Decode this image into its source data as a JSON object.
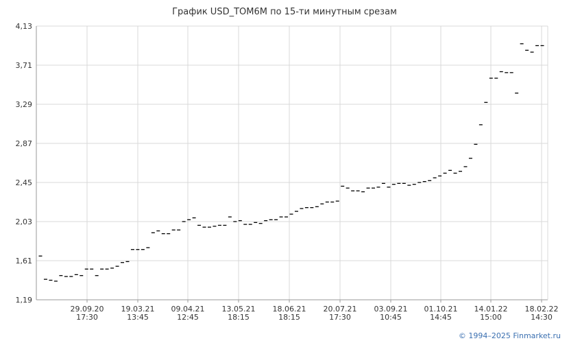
{
  "chart_data": {
    "type": "scatter",
    "title": "График USD_TOM6M по 15-ти минутным срезам",
    "y_ticks": [
      "4,13",
      "3,71",
      "3,29",
      "2,87",
      "2,45",
      "2,03",
      "1,61",
      "1,19"
    ],
    "ylim": [
      1.19,
      4.13
    ],
    "x_ticks": [
      {
        "date": "29.09.20",
        "time": "17:30"
      },
      {
        "date": "19.03.21",
        "time": "13:45"
      },
      {
        "date": "09.04.21",
        "time": "12:45"
      },
      {
        "date": "13.05.21",
        "time": "18:15"
      },
      {
        "date": "18.06.21",
        "time": "18:15"
      },
      {
        "date": "20.07.21",
        "time": "17:30"
      },
      {
        "date": "03.09.21",
        "time": "10:45"
      },
      {
        "date": "01.10.21",
        "time": "14:45"
      },
      {
        "date": "14.01.22",
        "time": "15:00"
      },
      {
        "date": "18.02.22",
        "time": "14:30"
      }
    ],
    "grid": true,
    "values": [
      1.66,
      1.41,
      1.4,
      1.39,
      1.45,
      1.44,
      1.44,
      1.46,
      1.45,
      1.52,
      1.52,
      1.45,
      1.52,
      1.52,
      1.53,
      1.55,
      1.59,
      1.6,
      1.73,
      1.73,
      1.73,
      1.75,
      1.91,
      1.93,
      1.9,
      1.9,
      1.94,
      1.94,
      2.03,
      2.05,
      2.07,
      1.99,
      1.97,
      1.97,
      1.98,
      1.99,
      1.99,
      2.08,
      2.03,
      2.04,
      2.0,
      2.0,
      2.02,
      2.01,
      2.04,
      2.05,
      2.05,
      2.08,
      2.08,
      2.11,
      2.14,
      2.17,
      2.18,
      2.18,
      2.19,
      2.22,
      2.24,
      2.24,
      2.25,
      2.41,
      2.39,
      2.36,
      2.36,
      2.35,
      2.39,
      2.39,
      2.4,
      2.44,
      2.4,
      2.43,
      2.44,
      2.44,
      2.42,
      2.43,
      2.45,
      2.46,
      2.47,
      2.5,
      2.52,
      2.55,
      2.58,
      2.55,
      2.57,
      2.62,
      2.71,
      2.86,
      3.07,
      3.31,
      3.57,
      3.57,
      3.64,
      3.63,
      3.63,
      3.41,
      3.94,
      3.87,
      3.85,
      3.92,
      3.92
    ],
    "marker_color": "#000000",
    "grid_color": "#d9d9d9"
  },
  "copyright": "© 1994–2025 Finmarket.ru"
}
